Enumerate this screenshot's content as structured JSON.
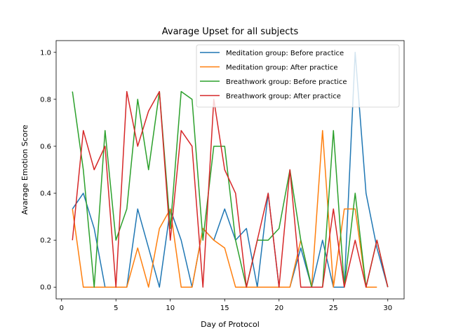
{
  "chart_data": {
    "type": "line",
    "title": "Avarage Upset for all subjects",
    "xlabel": "Day of Protocol",
    "ylabel": "Avarage Emotion Score",
    "xlim": [
      -0.5,
      31.5
    ],
    "ylim": [
      -0.05,
      1.05
    ],
    "xticks": [
      0,
      5,
      10,
      15,
      20,
      25,
      30
    ],
    "yticks": [
      0.0,
      0.2,
      0.4,
      0.6,
      0.8,
      1.0
    ],
    "xtick_labels": [
      "0",
      "5",
      "10",
      "15",
      "20",
      "25",
      "30"
    ],
    "ytick_labels": [
      "0.0",
      "0.2",
      "0.4",
      "0.6",
      "0.8",
      "1.0"
    ],
    "grid": false,
    "legend_position": "top-right",
    "series": [
      {
        "name": "Meditation group: Before practice",
        "color": "#1f77b4",
        "x": [
          1,
          2,
          3,
          4,
          5,
          6,
          7,
          8,
          9,
          10,
          11,
          12,
          13,
          14,
          15,
          16,
          17,
          18,
          19,
          20,
          21,
          22,
          23,
          24,
          25,
          26,
          27,
          28,
          29,
          30
        ],
        "y": [
          0.333,
          0.4,
          0.25,
          0.0,
          0.0,
          0.0,
          0.333,
          0.167,
          0.0,
          0.333,
          0.2,
          0.0,
          0.25,
          0.2,
          0.333,
          0.2,
          0.25,
          0.0,
          0.4,
          0.0,
          0.0,
          0.167,
          0.0,
          0.2,
          0.0,
          0.0,
          1.0,
          0.4,
          0.167,
          0.0
        ]
      },
      {
        "name": "Meditation group: After practice",
        "color": "#ff7f0e",
        "x": [
          1,
          2,
          3,
          4,
          5,
          6,
          7,
          8,
          9,
          10,
          11,
          12,
          13,
          14,
          15,
          16,
          17,
          18,
          19,
          20,
          21,
          22,
          23,
          24,
          25,
          26,
          27,
          28,
          29
        ],
        "y": [
          0.333,
          0.0,
          0.0,
          0.0,
          0.0,
          0.0,
          0.167,
          0.0,
          0.25,
          0.333,
          0.0,
          0.0,
          0.25,
          0.2,
          0.167,
          0.0,
          0.0,
          0.0,
          0.0,
          0.0,
          0.0,
          0.2,
          0.0,
          0.667,
          0.0,
          0.333,
          0.333,
          0.0,
          0.0
        ]
      },
      {
        "name": "Breathwork group: Before practice",
        "color": "#2ca02c",
        "x": [
          1,
          2,
          3,
          4,
          5,
          6,
          7,
          8,
          9,
          10,
          11,
          12,
          13,
          14,
          15,
          16,
          17,
          18,
          19,
          20,
          21,
          22,
          23,
          24,
          25,
          26,
          27,
          28,
          29,
          30
        ],
        "y": [
          0.833,
          0.5,
          0.0,
          0.667,
          0.2,
          0.333,
          0.8,
          0.5,
          0.833,
          0.25,
          0.833,
          0.8,
          0.2,
          0.6,
          0.6,
          0.2,
          0.0,
          0.2,
          0.2,
          0.25,
          0.5,
          0.2,
          0.0,
          0.0,
          0.667,
          0.0,
          0.4,
          0.0,
          0.2,
          0.0
        ]
      },
      {
        "name": "Breathwork group: After practice",
        "color": "#d62728",
        "x": [
          1,
          2,
          3,
          4,
          5,
          6,
          7,
          8,
          9,
          10,
          11,
          12,
          13,
          14,
          15,
          16,
          17,
          18,
          19,
          20,
          21,
          22,
          23,
          24,
          25,
          26,
          27,
          28,
          29,
          30
        ],
        "y": [
          0.2,
          0.667,
          0.5,
          0.6,
          0.0,
          0.833,
          0.6,
          0.75,
          0.833,
          0.2,
          0.667,
          0.6,
          0.0,
          0.8,
          0.5,
          0.4,
          0.0,
          0.2,
          0.4,
          0.0,
          0.5,
          0.0,
          0.0,
          0.0,
          0.333,
          0.0,
          0.2,
          0.0,
          0.2,
          0.0
        ]
      }
    ]
  }
}
